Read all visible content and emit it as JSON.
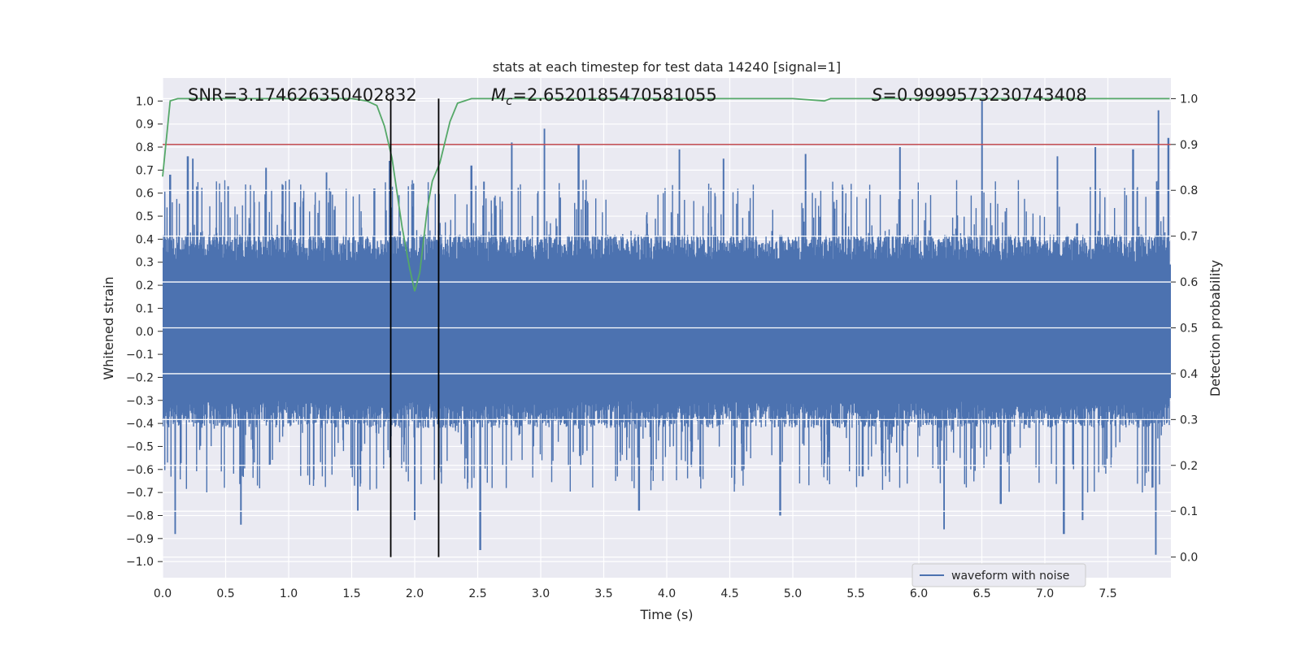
{
  "chart_data": {
    "type": "line",
    "title": "stats at each timestep for test data 14240 [signal=1]",
    "xlabel": "Time (s)",
    "ylabel": "Whitened strain",
    "y2label": "Detection probability",
    "xlim": [
      0.0,
      8.0
    ],
    "ylim": [
      -1.07,
      1.1
    ],
    "y2lim": [
      -0.045,
      1.045
    ],
    "xticks": [
      "0.0",
      "0.5",
      "1.0",
      "1.5",
      "2.0",
      "2.5",
      "3.0",
      "3.5",
      "4.0",
      "4.5",
      "5.0",
      "5.5",
      "6.0",
      "6.5",
      "7.0",
      "7.5"
    ],
    "yticks": [
      "1.0",
      "0.9",
      "0.8",
      "0.7",
      "0.6",
      "0.5",
      "0.4",
      "0.3",
      "0.2",
      "0.1",
      "0.0",
      "−0.1",
      "−0.2",
      "−0.3",
      "−0.4",
      "−0.5",
      "−0.6",
      "−0.7",
      "−0.8",
      "−0.9",
      "−1.0"
    ],
    "y2ticks": [
      "1.0",
      "0.9",
      "0.8",
      "0.7",
      "0.6",
      "0.5",
      "0.4",
      "0.3",
      "0.2",
      "0.1",
      "0.0"
    ],
    "grid": true,
    "legend_position": "bottom-center",
    "annotations": {
      "snr": "SNR=3.174626350402832",
      "mc_symbol": "M",
      "mc_sub": "c",
      "mc_value": "=2.6520185470581055",
      "s_symbol": "S",
      "s_value": "=0.9999573230743408"
    },
    "event_markers_x": [
      1.81,
      2.19
    ],
    "threshold_y2": 0.9,
    "series": [
      {
        "name": "waveform with noise",
        "color": "#4c72b0",
        "axis": "left",
        "envelope": {
          "core": 0.3,
          "upper_peaks": [
            [
              0.06,
              0.68
            ],
            [
              0.2,
              0.76
            ],
            [
              0.24,
              0.75
            ],
            [
              0.52,
              0.63
            ],
            [
              0.82,
              0.71
            ],
            [
              1.05,
              0.56
            ],
            [
              1.3,
              0.69
            ],
            [
              1.68,
              0.62
            ],
            [
              1.8,
              0.74
            ],
            [
              2.45,
              0.72
            ],
            [
              2.55,
              0.65
            ],
            [
              2.77,
              0.82
            ],
            [
              3.03,
              0.88
            ],
            [
              3.3,
              0.81
            ],
            [
              4.1,
              0.79
            ],
            [
              4.45,
              0.75
            ],
            [
              5.1,
              0.77
            ],
            [
              5.85,
              0.8
            ],
            [
              6.5,
              1.0
            ],
            [
              7.1,
              0.76
            ],
            [
              7.4,
              0.8
            ],
            [
              7.7,
              0.79
            ],
            [
              7.9,
              0.96
            ],
            [
              7.98,
              0.84
            ]
          ],
          "lower_peaks": [
            [
              0.1,
              -0.88
            ],
            [
              0.62,
              -0.84
            ],
            [
              1.55,
              -0.78
            ],
            [
              2.0,
              -0.82
            ],
            [
              2.52,
              -0.95
            ],
            [
              3.78,
              -0.78
            ],
            [
              4.9,
              -0.8
            ],
            [
              6.2,
              -0.86
            ],
            [
              6.65,
              -0.75
            ],
            [
              7.15,
              -0.88
            ],
            [
              7.3,
              -0.82
            ],
            [
              7.88,
              -0.97
            ]
          ]
        }
      },
      {
        "name": "",
        "color": "#55a868",
        "axis": "right",
        "x": [
          0.0,
          0.06,
          0.12,
          0.5,
          1.0,
          1.5,
          1.62,
          1.7,
          1.76,
          1.82,
          1.9,
          1.96,
          2.0,
          2.04,
          2.1,
          2.14,
          2.2,
          2.28,
          2.34,
          2.45,
          3.0,
          4.0,
          5.0,
          5.25,
          5.3,
          6.0,
          7.0,
          7.99
        ],
        "y": [
          0.83,
          0.995,
          1.0,
          1.0,
          1.0,
          1.0,
          0.995,
          0.985,
          0.94,
          0.87,
          0.72,
          0.63,
          0.58,
          0.62,
          0.76,
          0.82,
          0.86,
          0.95,
          0.99,
          1.0,
          1.0,
          1.0,
          1.0,
          0.995,
          1.0,
          1.0,
          1.0,
          1.0
        ]
      }
    ]
  }
}
